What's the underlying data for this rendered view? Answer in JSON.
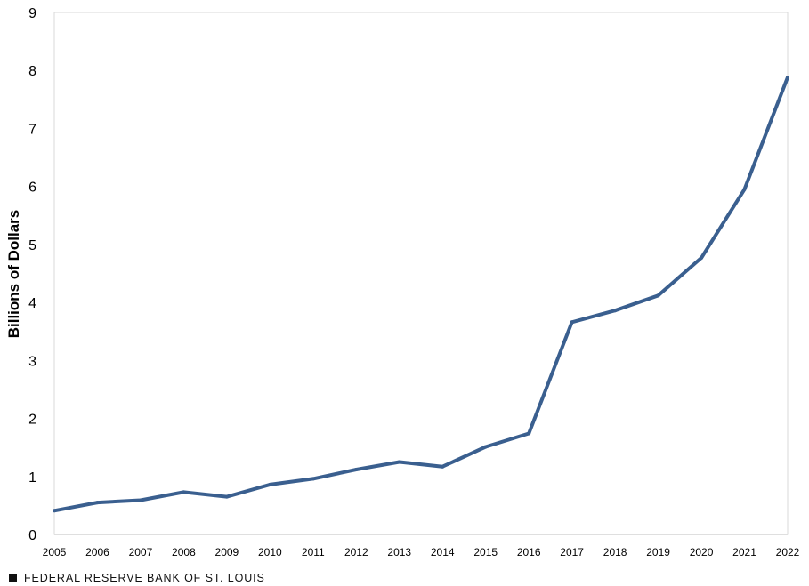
{
  "chart_data": {
    "type": "line",
    "title": "",
    "xlabel": "",
    "ylabel": "Billions of Dollars",
    "ylim": [
      0,
      9
    ],
    "yticks": [
      0,
      1,
      2,
      3,
      4,
      5,
      6,
      7,
      8,
      9
    ],
    "grid": false,
    "legend": "none",
    "categories": [
      "2005",
      "2006",
      "2007",
      "2008",
      "2009",
      "2010",
      "2011",
      "2012",
      "2013",
      "2014",
      "2015",
      "2016",
      "2017",
      "2018",
      "2019",
      "2020",
      "2021",
      "2022"
    ],
    "series": [
      {
        "color": "#3a5f8f",
        "values": [
          0.41,
          0.55,
          0.59,
          0.73,
          0.65,
          0.86,
          0.96,
          1.12,
          1.25,
          1.17,
          1.51,
          1.74,
          3.66,
          3.86,
          4.12,
          4.77,
          5.95,
          7.88
        ]
      }
    ]
  },
  "footer": {
    "source": "FEDERAL RESERVE BANK OF ST. LOUIS"
  }
}
